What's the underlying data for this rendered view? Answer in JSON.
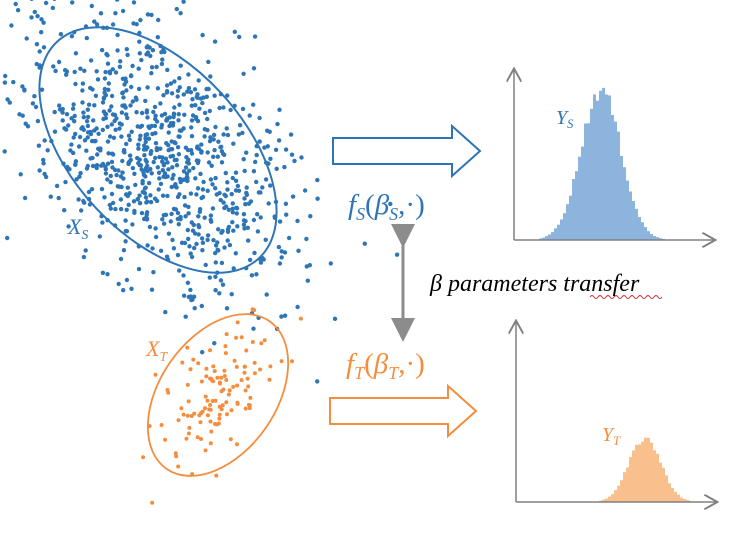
{
  "colors": {
    "source": "#2E75B6",
    "source_hist": "#8CB4DD",
    "target": "#F58D3C",
    "target_hist": "#F9C08E",
    "transfer_arrow": "#8C8C8C",
    "axis": "#808080"
  },
  "source": {
    "x_label": {
      "base": "X",
      "sub": "S"
    },
    "y_label": {
      "base": "Y",
      "sub": "S"
    },
    "function": {
      "f": "f",
      "f_sub": "S",
      "open": "(",
      "beta": "β",
      "beta_sub": "S",
      "rest": ",·)"
    }
  },
  "target": {
    "x_label": {
      "base": "X",
      "sub": "T"
    },
    "y_label": {
      "base": "Y",
      "sub": "T"
    },
    "function": {
      "f": "f",
      "f_sub": "T",
      "open": "(",
      "beta": "β",
      "beta_sub": "T",
      "rest": ",·)"
    }
  },
  "transfer_label": "β parameters transfer"
}
